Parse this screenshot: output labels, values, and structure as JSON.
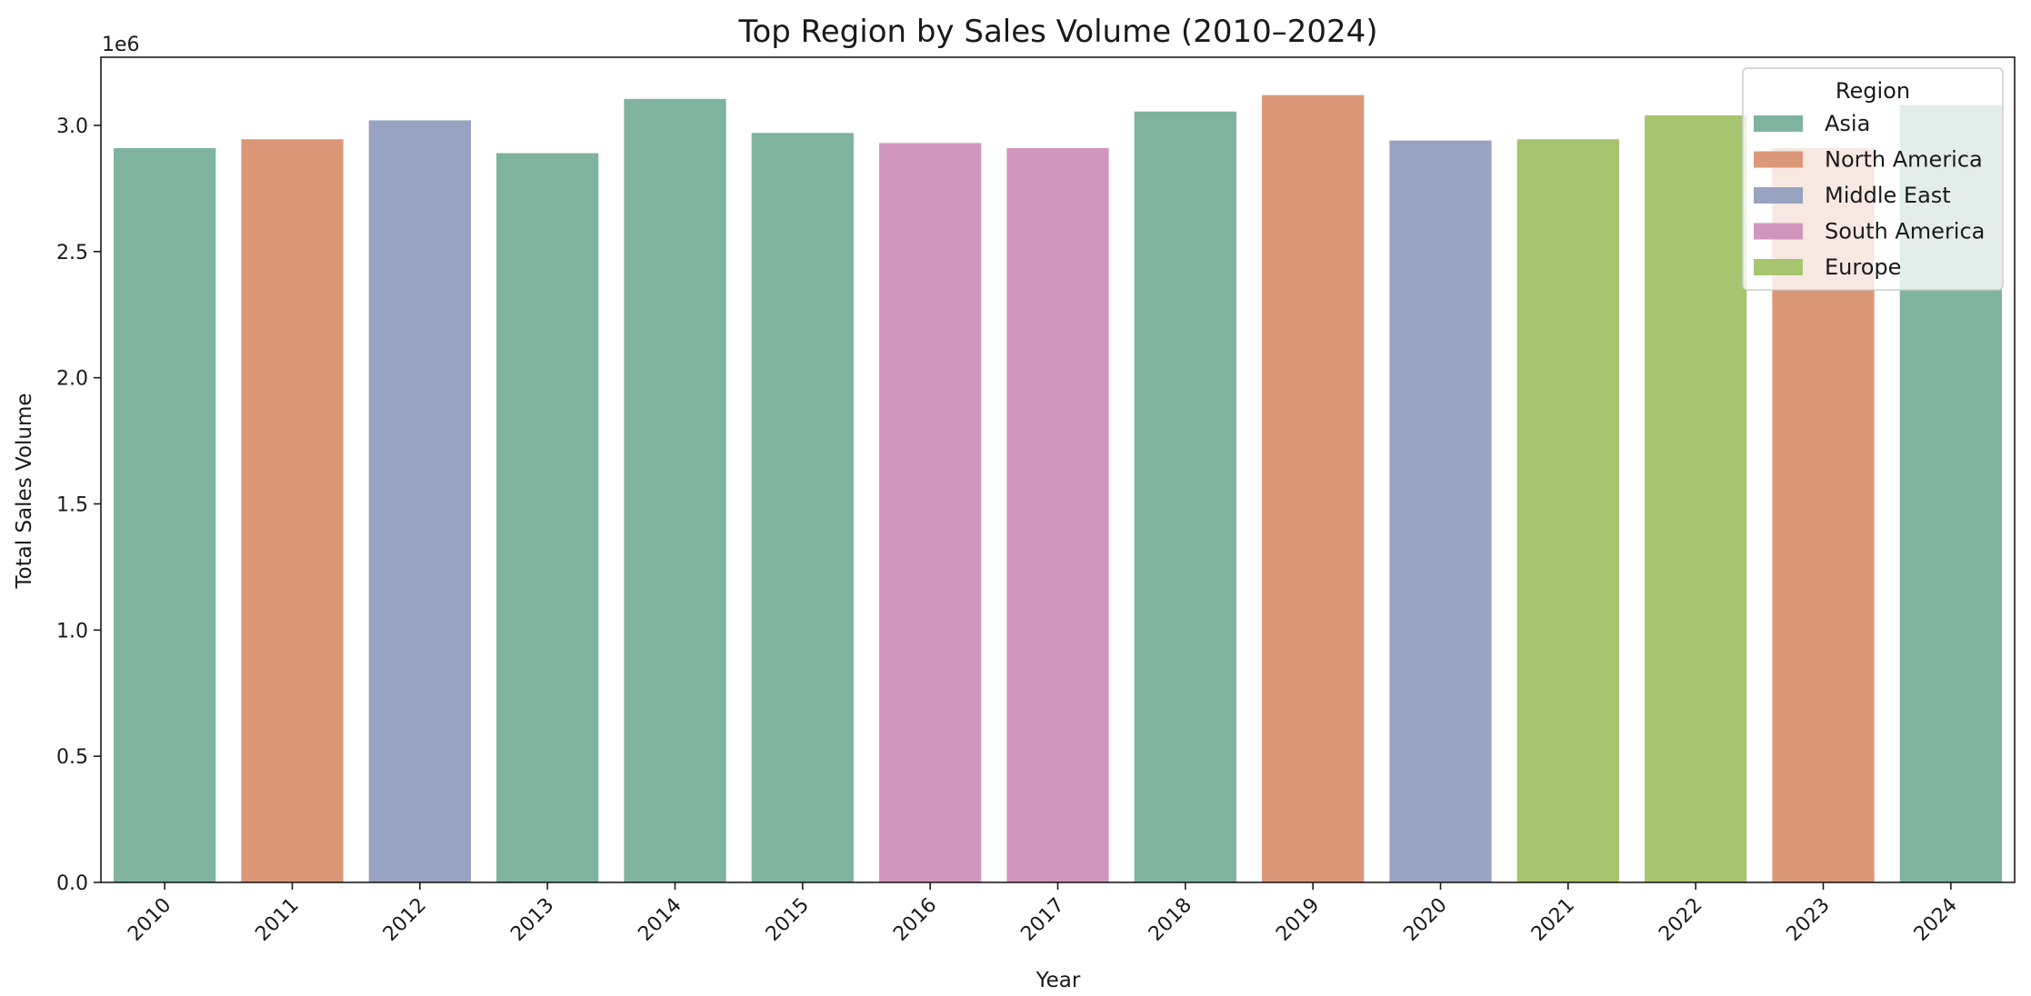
{
  "chart_data": {
    "type": "bar",
    "title": "Top Region by Sales Volume (2010–2024)",
    "xlabel": "Year",
    "ylabel": "Total Sales Volume",
    "y_offset_label": "1e6",
    "ylim": [
      0,
      3270000
    ],
    "yticks": [
      0.0,
      0.5,
      1.0,
      1.5,
      2.0,
      2.5,
      3.0
    ],
    "ytick_labels": [
      "0.0",
      "0.5",
      "1.0",
      "1.5",
      "2.0",
      "2.5",
      "3.0"
    ],
    "grid": false,
    "categories": [
      "2010",
      "2011",
      "2012",
      "2013",
      "2014",
      "2015",
      "2016",
      "2017",
      "2018",
      "2019",
      "2020",
      "2021",
      "2022",
      "2023",
      "2024"
    ],
    "values": [
      2910000,
      2945000,
      3020000,
      2890000,
      3105000,
      2970000,
      2930000,
      2910000,
      3055000,
      3120000,
      2940000,
      2945000,
      3040000,
      2910000,
      3080000
    ],
    "regions": [
      "Asia",
      "North America",
      "Middle East",
      "Asia",
      "Asia",
      "Asia",
      "South America",
      "South America",
      "Asia",
      "North America",
      "Middle East",
      "Europe",
      "Europe",
      "North America",
      "Asia"
    ],
    "legend": {
      "title": "Region",
      "placement": "top-right",
      "entries": [
        {
          "name": "Asia",
          "color": "#7fb39f"
        },
        {
          "name": "North America",
          "color": "#db9778"
        },
        {
          "name": "Middle East",
          "color": "#97a3c0"
        },
        {
          "name": "South America",
          "color": "#d196bd"
        },
        {
          "name": "Europe",
          "color": "#a7c56f"
        }
      ]
    }
  }
}
